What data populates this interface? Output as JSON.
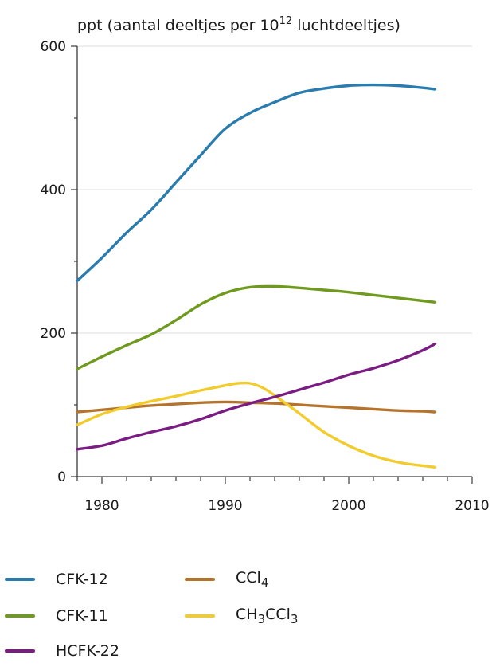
{
  "chart_data": {
    "type": "line",
    "ylabel_prefix": "ppt (aantal deeltjes per 10",
    "ylabel_exp": "12",
    "ylabel_suffix": " luchtdeeltjes)",
    "xlim": [
      1978,
      2010
    ],
    "ylim": [
      0,
      600
    ],
    "xticks": [
      1980,
      1990,
      2000,
      2010
    ],
    "yticks": [
      0,
      200,
      400,
      600
    ],
    "grid": true,
    "legend_position": "bottom",
    "series": [
      {
        "name": "CFK-12",
        "color": "#2a7cae",
        "x": [
          1978,
          1980,
          1982,
          1984,
          1986,
          1988,
          1990,
          1992,
          1994,
          1996,
          1998,
          2000,
          2002,
          2004,
          2006,
          2007
        ],
        "y": [
          273,
          305,
          340,
          372,
          410,
          448,
          485,
          507,
          522,
          535,
          541,
          545,
          546,
          545,
          542,
          540
        ]
      },
      {
        "name": "CFK-11",
        "color": "#6f9a1f",
        "x": [
          1978,
          1980,
          1982,
          1984,
          1986,
          1988,
          1990,
          1992,
          1994,
          1996,
          1998,
          2000,
          2002,
          2004,
          2006,
          2007
        ],
        "y": [
          150,
          167,
          183,
          198,
          218,
          240,
          256,
          264,
          265,
          263,
          260,
          257,
          253,
          249,
          245,
          243
        ]
      },
      {
        "name": "HCFK-22",
        "color": "#7a1c82",
        "x": [
          1978,
          1980,
          1982,
          1984,
          1986,
          1988,
          1990,
          1992,
          1994,
          1996,
          1998,
          2000,
          2002,
          2004,
          2006,
          2007
        ],
        "y": [
          38,
          43,
          53,
          62,
          70,
          80,
          92,
          102,
          111,
          121,
          131,
          142,
          151,
          162,
          176,
          185
        ]
      },
      {
        "name": "CCl",
        "sub": "4",
        "color": "#b5742e",
        "x": [
          1978,
          1980,
          1982,
          1984,
          1986,
          1988,
          1990,
          1992,
          1994,
          1996,
          1998,
          2000,
          2002,
          2004,
          2006,
          2007
        ],
        "y": [
          90,
          93,
          96,
          99,
          101,
          103,
          104,
          103,
          102,
          100,
          98,
          96,
          94,
          92,
          91,
          90
        ]
      },
      {
        "name": "CH",
        "sub": "3",
        "name2": "CCl",
        "sub2": "3",
        "color": "#f2cc2c",
        "x": [
          1978,
          1980,
          1982,
          1984,
          1986,
          1988,
          1990,
          1991,
          1992,
          1993,
          1994,
          1996,
          1998,
          2000,
          2002,
          2004,
          2006,
          2007
        ],
        "y": [
          72,
          87,
          97,
          105,
          112,
          120,
          127,
          130,
          130,
          124,
          113,
          88,
          62,
          43,
          29,
          20,
          15,
          13
        ]
      }
    ]
  }
}
